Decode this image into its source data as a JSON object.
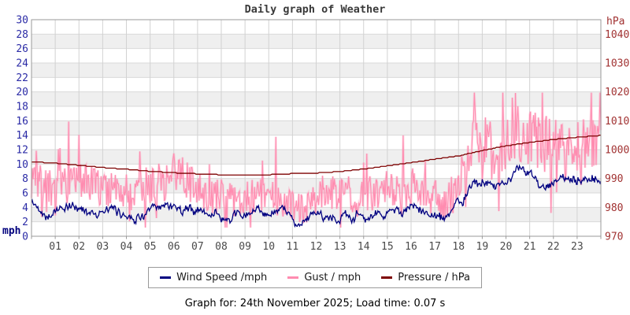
{
  "title": "Daily graph of Weather",
  "footer": "Graph for: 24th November 2025; Load time: 0.07 s",
  "legend": [
    {
      "label": "Wind Speed /mph",
      "color": "#000080"
    },
    {
      "label": "Gust / mph",
      "color": "#ff8cb0"
    },
    {
      "label": "Pressure / hPa",
      "color": "#7d0000"
    }
  ],
  "colors": {
    "band_gray": "#efefef",
    "grid_h": "#d9d9d9",
    "grid_v": "#d2d2d2",
    "plot_border": "#9a9a9a",
    "left_axis_text": "#2b2ba6",
    "right_axis_text": "#a13232",
    "x_axis_text": "#4a4a4a",
    "wind": "#000080",
    "gust": "#ff8cb0",
    "pressure": "#7d0000"
  },
  "chart_data": {
    "type": "line",
    "title": "Daily graph of Weather",
    "x_unit": "hour of day",
    "x_range_hours": [
      0,
      24
    ],
    "x_ticks": [
      "01",
      "02",
      "03",
      "04",
      "05",
      "06",
      "07",
      "08",
      "09",
      "10",
      "11",
      "12",
      "13",
      "14",
      "15",
      "16",
      "17",
      "18",
      "19",
      "20",
      "21",
      "22",
      "23"
    ],
    "grid": true,
    "left_axis": {
      "label": "mph",
      "min": 0,
      "max": 30,
      "tick_step": 2
    },
    "right_axis": {
      "label": "hPa",
      "min": 970,
      "max": 1045,
      "ticks": [
        970,
        980,
        990,
        1000,
        1010,
        1020,
        1030,
        1040
      ]
    },
    "sampling_note": "Original plots ~1-minute noisy observations; anchors below are values read from the curve at half-hour (wind/gust) and hourly (pressure) spacing.",
    "series": [
      {
        "name": "Wind Speed /mph",
        "axis": "left",
        "color": "#000080",
        "style": "noisy-line",
        "anchor_step_h": 0.5,
        "seed": 42,
        "noise_amp": 0.85,
        "anchors": [
          4.6,
          3.4,
          3.6,
          4.0,
          3.8,
          3.6,
          3.4,
          3.1,
          3.0,
          3.3,
          3.6,
          3.8,
          4.6,
          4.0,
          3.3,
          3.0,
          2.8,
          2.7,
          2.6,
          2.9,
          3.0,
          2.6,
          2.1,
          1.8,
          2.9,
          3.2,
          3.3,
          3.0,
          2.8,
          3.1,
          3.4,
          3.3,
          3.5,
          3.1,
          2.8,
          2.2,
          4.0,
          6.8,
          7.8,
          7.2,
          7.9,
          9.3,
          8.3,
          7.5,
          8.2,
          7.7,
          7.3,
          8.1,
          7.6
        ]
      },
      {
        "name": "Gust / mph",
        "axis": "left",
        "color": "#ff8cb0",
        "style": "spiky-line",
        "anchor_step_h": 0.5,
        "seed": 7,
        "max_observed": 19.9,
        "anchors": [
          8.0,
          6.5,
          6.8,
          7.5,
          7.2,
          6.8,
          6.4,
          6.0,
          5.8,
          6.2,
          6.8,
          7.2,
          8.5,
          7.5,
          6.0,
          5.5,
          5.2,
          5.0,
          4.8,
          5.4,
          5.6,
          4.8,
          3.8,
          3.4,
          5.4,
          6.0,
          6.2,
          5.6,
          5.2,
          5.8,
          6.4,
          6.2,
          6.6,
          5.8,
          5.2,
          4.2,
          7.5,
          11.5,
          12.8,
          12.0,
          12.8,
          14.0,
          13.2,
          12.2,
          13.0,
          12.4,
          11.8,
          13.0,
          12.4
        ]
      },
      {
        "name": "Pressure / hPa",
        "axis": "right",
        "color": "#7d0000",
        "style": "stepped-line",
        "anchor_step_h": 1,
        "quantize_hpa": 0.3,
        "anchors": [
          995.8,
          995.3,
          994.6,
          993.8,
          993.2,
          992.5,
          992.0,
          991.6,
          991.3,
          991.2,
          991.3,
          991.7,
          991.9,
          992.4,
          993.3,
          994.4,
          995.5,
          996.7,
          997.8,
          999.7,
          1001.3,
          1002.5,
          1003.5,
          1004.3,
          1004.9
        ]
      }
    ]
  }
}
